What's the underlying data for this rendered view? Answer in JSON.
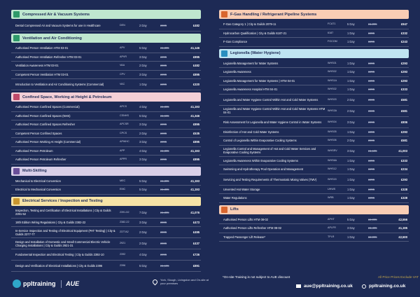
{
  "left_sections": [
    {
      "title": "Compressed Air & Vacuum Systems",
      "color": "#bfe7cf",
      "icon_color": "#2f9a6a",
      "icon": "air-icon",
      "courses": [
        {
          "name": "Dental Compressed Air and Vacuum Systems for use in Healthcare",
          "code": "DEN",
          "duration": "2 Day",
          "old_price": "£595",
          "price": "£482"
        }
      ]
    },
    {
      "title": "Ventilation and Air Conditioning",
      "color": "#bfe7cf",
      "icon_color": "#2f9a6a",
      "icon": "fan-icon",
      "courses": [
        {
          "name": "Authorised Person Ventilation HTM 03-01",
          "code": "APV",
          "duration": "5 Day",
          "old_price": "£1,395",
          "price": "£1,146"
        },
        {
          "name": "Authorised Person Ventilation Refresher HTM 03-01",
          "code": "APVR",
          "duration": "3 Day",
          "old_price": "£995",
          "price": "£895"
        },
        {
          "name": "Ventilation Awareness HTM 03-01",
          "code": "VAA",
          "duration": "2 Day",
          "old_price": "£595",
          "price": "£482"
        },
        {
          "name": "Competent Person Ventilation HTM 03-01",
          "code": "CPV",
          "duration": "3 Day",
          "old_price": "£995",
          "price": "£895"
        },
        {
          "name": "Introduction to Ventilation and Air Conditioning Systems (Commercial)",
          "code": "VAC",
          "duration": "1 Day",
          "old_price": "£395",
          "price": "£320"
        }
      ]
    },
    {
      "title": "Confined Space, Working at Height & Petroleum",
      "color": "#f3cfd6",
      "icon_color": "#c04a6a",
      "icon": "hardhat-icon",
      "courses": [
        {
          "name": "Authorised Person Confined Spaces (Commercial)",
          "code": "APCS",
          "duration": "4 Day",
          "old_price": "£1,395",
          "price": "£1,193"
        },
        {
          "name": "Authorised Person Confined Spaces (NHS)",
          "code": "CSNHS",
          "duration": "5 Day",
          "old_price": "£1,695",
          "price": "£1,346"
        },
        {
          "name": "Authorised Person Confined Spaces Refresher",
          "code": "APCSR",
          "duration": "3 Day",
          "old_price": "£995",
          "price": "£895"
        },
        {
          "name": "Competent Person Confined Spaces",
          "code": "CPCS",
          "duration": "2 Day",
          "old_price": "£695",
          "price": "£535"
        },
        {
          "name": "Authorised Person Working At Height (Commercial)",
          "code": "APWHC",
          "duration": "3 Day",
          "old_price": "£995",
          "price": "£895"
        },
        {
          "name": "Authorised Person Petroleum",
          "code": "APP",
          "duration": "4 Day",
          "old_price": "£1,395",
          "price": "£1,193"
        },
        {
          "name": "Authorised Person Petroleum Refresher",
          "code": "APPR",
          "duration": "3 Day",
          "old_price": "£995",
          "price": "£895"
        }
      ]
    },
    {
      "title": "Multi-Skilling",
      "color": "#d9cfe8",
      "icon_color": "#6a4f9a",
      "icon": "gear-icon",
      "courses": [
        {
          "name": "Mechanical to Electrical Conversion",
          "code": "MEC",
          "duration": "5 Day",
          "old_price": "£1,395",
          "price": "£1,193"
        },
        {
          "name": "Electrical to Mechanical Conversion",
          "code": "EMC",
          "duration": "5 Day",
          "old_price": "£1,395",
          "price": "£1,193"
        }
      ]
    },
    {
      "title": "Electrical Services / Inspection and Testing",
      "color": "#f6e3a6",
      "icon_color": "#c9962f",
      "icon": "bolt-icon",
      "courses": [
        {
          "name": "Inspection, Testing and Certification of Electrical Installations | City & Guilds 2391-52",
          "code": "2391-52",
          "duration": "7 Day",
          "old_price": "£1,395",
          "price": "£1,076"
        },
        {
          "name": "18th Edition Wiring Regulations | City & Guilds 2382-22",
          "code": "2382-22",
          "duration": "3 Day",
          "old_price": "£595",
          "price": "£473"
        },
        {
          "name": "In-Service Inspection and Testing of Electrical Equipment (PAT Testing) | City & Guilds 2377-77",
          "code": "2377A2",
          "duration": "2 Day",
          "old_price": "£595",
          "price": "£495"
        },
        {
          "name": "Design and Installation of Domestic and Small Commercial Electric Vehicle Charging Installations | City & Guilds 2921-31",
          "code": "2921",
          "duration": "2 Day",
          "old_price": "£595",
          "price": "£437"
        },
        {
          "name": "Fundamental Inspection and Electrical Testing | City & Guilds 2392-10",
          "code": "2392",
          "duration": "4 Day",
          "old_price": "£995",
          "price": "£726"
        },
        {
          "name": "Design and Verification of Electrical Installations | City & Guilds 2396",
          "code": "2396",
          "duration": "5 Day",
          "old_price": "£1,195",
          "price": "£891"
        }
      ]
    }
  ],
  "right_sections": [
    {
      "title": "F-Gas Handling / Refrigerant Pipeline Systems",
      "color": "#f9cdb4",
      "icon_color": "#d9662f",
      "icon": "snowflake-icon",
      "courses": [
        {
          "name": "F-Gas Category 1 | City & Guilds 2079-11",
          "code": "FCAT1",
          "duration": "5 Day",
          "old_price": "£1,095",
          "price": "£947"
        },
        {
          "name": "Hydrocarbon Qualification | City & Guilds 6187-21",
          "code": "6187",
          "duration": "1 Day",
          "old_price": "£395",
          "price": "£332"
        },
        {
          "name": "F-Gas Compliance",
          "code": "FGCOM",
          "duration": "1 Day",
          "old_price": "£295",
          "price": "£243"
        }
      ]
    },
    {
      "title": "Legionella (Water Hygiene)",
      "color": "#bfe4f1",
      "icon_color": "#2a8fbf",
      "icon": "water-drop-icon",
      "courses": [
        {
          "name": "Legionella Management for Water Systems",
          "code": "WHS01",
          "duration": "1 Day",
          "old_price": "£395",
          "price": "£293"
        },
        {
          "name": "Legionella Awareness",
          "code": "WHS02",
          "duration": "1 Day",
          "old_price": "£295",
          "price": "£293"
        },
        {
          "name": "Legionella Management for Water Systems | HTM 04-01",
          "code": "WHS1A",
          "duration": "1 Day",
          "old_price": "£395",
          "price": "£293"
        },
        {
          "name": "Legionella Awareness Hospital HTM 04-01",
          "code": "WHS02",
          "duration": "1 Day",
          "old_price": "£395",
          "price": "£333"
        },
        {
          "name": "Legionella and Water Hygiene Control Within Hot and Cold Water Systems",
          "code": "WHS03",
          "duration": "2 Day",
          "old_price": "£595",
          "price": "£581"
        },
        {
          "name": "Legionella and Water Hygiene Control Within Hot and Cold Water Systems HTM 04-01",
          "code": "WHS3A",
          "duration": "2 Day",
          "old_price": "£595",
          "price": "£581"
        },
        {
          "name": "Risk Assessment for Legionella and Water Hygiene Control in Water Systems",
          "code": "WHS04",
          "duration": "3 Day",
          "old_price": "£995",
          "price": "£806"
        },
        {
          "name": "Disinfection of Hot and Cold Water Systems",
          "code": "WHS05",
          "duration": "1 Day",
          "old_price": "£395",
          "price": "£293"
        },
        {
          "name": "Control of Legionella Within Evaporative Cooling Systems",
          "code": "WHS06",
          "duration": "2 Day",
          "old_price": "£595",
          "price": "£581"
        },
        {
          "name": "Legionella Control and Management of Hot and Cold Water Services and Evaporative Cooling Systems",
          "code": "WHSRV",
          "duration": "3 Day",
          "old_price": "£1,195",
          "price": "£1,003"
        },
        {
          "name": "Legionella Awareness Within Evaporative Cooling Systems",
          "code": "WHS6A",
          "duration": "1 Day",
          "old_price": "£395",
          "price": "£333"
        },
        {
          "name": "Swimming and Hydrotherapy Pool Operation and Management",
          "code": "WHS12",
          "duration": "1 Day",
          "old_price": "£295",
          "price": "£234"
        },
        {
          "name": "Servicing and Testing Requirements of Thermostatic Mixing Valves (TMV)",
          "code": "WHS15",
          "duration": "1 Day",
          "old_price": "£295",
          "price": "£293"
        },
        {
          "name": "Unvented Hot Water Storage",
          "code": "UHWS",
          "duration": "1 Day",
          "old_price": "£395",
          "price": "£328"
        },
        {
          "name": "Water Regulations",
          "code": "WRB",
          "duration": "1 Day",
          "old_price": "£395",
          "price": "£328"
        }
      ]
    },
    {
      "title": "Lifts",
      "color": "#f9cdb4",
      "icon_color": "#d9662f",
      "icon": "lift-icon",
      "courses": [
        {
          "name": "Authorised Person Lifts HTM 08-02",
          "code": "APHT",
          "duration": "5 Day",
          "old_price": "£2,995",
          "price": "£2,556"
        },
        {
          "name": "Authorised Person Lifts Refresher HTM 08-02",
          "code": "APLFR",
          "duration": "3 Day",
          "old_price": "£1,495",
          "price": "£1,195"
        },
        {
          "name": "Trapped Passenger Lift Release*",
          "code": "TPLR",
          "duration": "1 Day",
          "old_price": "£2,995",
          "price": "£2,500"
        }
      ]
    }
  ],
  "footer": {
    "brand": "ppltraining",
    "partner": "AUE",
    "locations": "York, Slough, Livingston and On-site at your premises",
    "note": "*On-site Training is not subject to AUE discount",
    "vat": "All Price Prices Exclude VAT",
    "email": "aue@ppltraining.co.uk",
    "web": "ppltraining.co.uk"
  }
}
